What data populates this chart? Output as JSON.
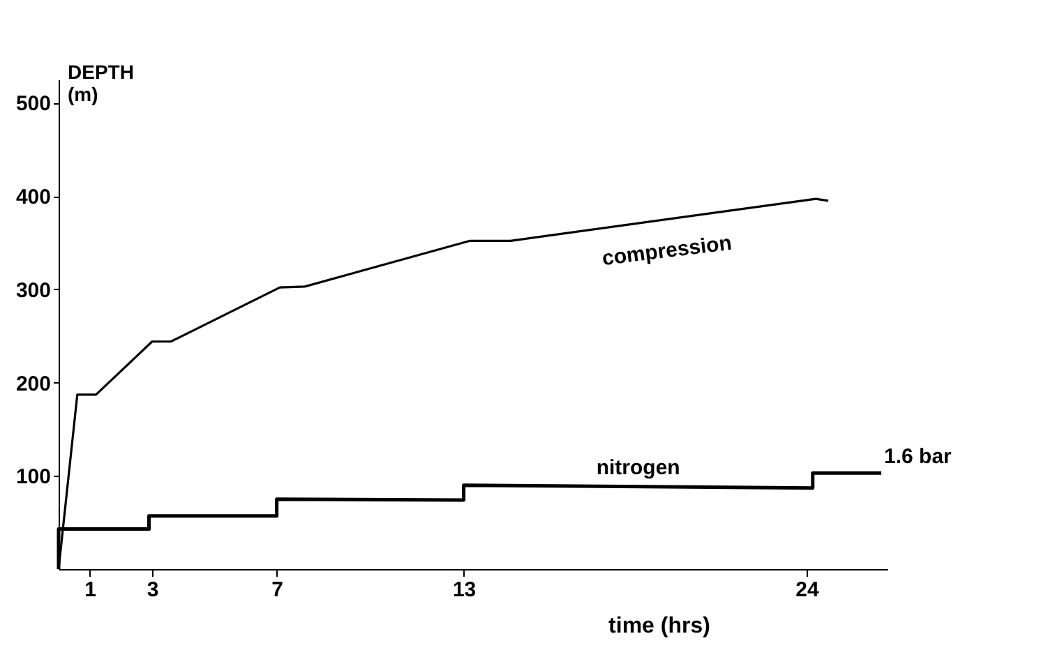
{
  "chart_data": {
    "type": "line",
    "xlabel": "time (hrs)",
    "ylabel": "DEPTH\n(m)",
    "series": [
      {
        "name": "compression",
        "color": "#000000",
        "x": [
          0,
          0.6,
          1.2,
          3,
          3.6,
          7.1,
          7.9,
          13.2,
          14.5,
          24.3,
          24.7
        ],
        "values": [
          0,
          187,
          187,
          244,
          244,
          302,
          303,
          352,
          352,
          397,
          395
        ]
      },
      {
        "name": "nitrogen",
        "color": "#000000",
        "x": [
          0,
          0,
          2.9,
          2.9,
          7,
          7,
          13,
          13,
          24.2,
          24.2,
          26.4
        ],
        "values": [
          0,
          43,
          43,
          57,
          57,
          75,
          74,
          90,
          87,
          103,
          103
        ]
      }
    ],
    "xlim": [
      0,
      26.6
    ],
    "xticks": [
      1,
      3,
      7,
      13,
      24
    ],
    "ylim": [
      0,
      525
    ],
    "yticks": [
      100,
      200,
      300,
      400,
      500
    ],
    "grid": false,
    "marker": "none",
    "line_style": "solid",
    "annotations": [
      {
        "text": "1.6 bar",
        "x": 26.4,
        "y": 103
      }
    ]
  }
}
